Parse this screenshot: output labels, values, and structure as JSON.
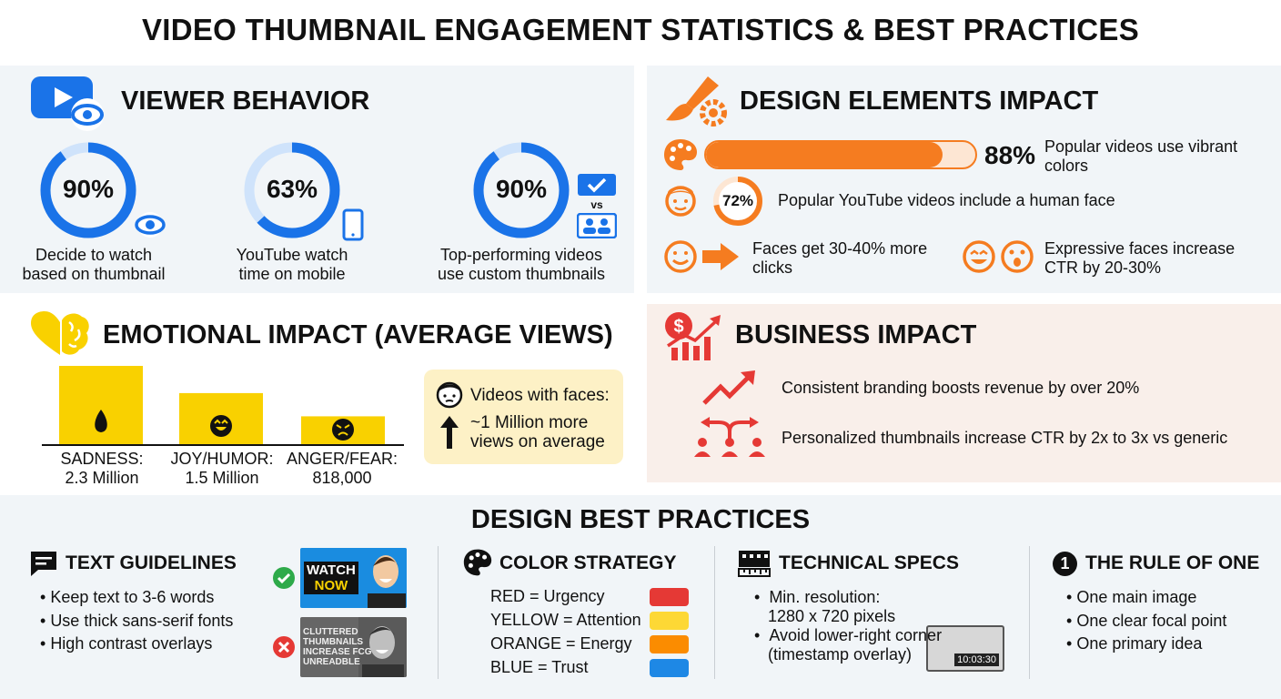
{
  "title": "VIDEO THUMBNAIL ENGAGEMENT STATISTICS & BEST PRACTICES",
  "viewer": {
    "heading": "VIEWER BEHAVIOR",
    "stats": [
      {
        "value": "90%",
        "pct": 90,
        "caption1": "Decide to watch",
        "caption2": "based on thumbnail"
      },
      {
        "value": "63%",
        "pct": 63,
        "caption1": "YouTube watch",
        "caption2": "time on mobile"
      },
      {
        "value": "90%",
        "pct": 90,
        "caption1": "Top-performing videos",
        "caption2": "use custom thumbnails",
        "vs": "vs"
      }
    ]
  },
  "design": {
    "heading": "DESIGN ELEMENTS IMPACT",
    "bar": {
      "value": "88%",
      "pct": 88,
      "text1": "Popular videos use vibrant",
      "text2": "colors"
    },
    "face": {
      "value": "72%",
      "pct": 72,
      "text": "Popular YouTube videos include a human face"
    },
    "clicks": {
      "text1": "Faces get 30-40% more",
      "text2": "clicks"
    },
    "ctr": {
      "text1": "Expressive faces increase",
      "text2": "CTR by 20-30%"
    }
  },
  "emotional": {
    "heading": "EMOTIONAL IMPACT (AVERAGE VIEWS)",
    "chart_data": {
      "type": "bar",
      "categories": [
        "SADNESS:",
        "JOY/HUMOR:",
        "ANGER/FEAR:"
      ],
      "values": [
        2300000,
        1500000,
        818000
      ],
      "labels": [
        "2.3 Million",
        "1.5 Million",
        "818,000"
      ]
    },
    "callout": {
      "line1": "Videos with faces:",
      "line2": "~1 Million more",
      "line3": "views on average"
    }
  },
  "business": {
    "heading": "BUSINESS IMPACT",
    "item1": "Consistent branding boosts revenue by over 20%",
    "item2": "Personalized thumbnails increase CTR by 2x to 3x vs generic"
  },
  "best": {
    "heading": "DESIGN BEST PRACTICES",
    "text": {
      "heading": "TEXT GUIDELINES",
      "items": [
        "Keep text to 3-6 words",
        "Use thick sans-serif fonts",
        "High contrast overlays"
      ],
      "good_thumb_1": "WATCH",
      "good_thumb_2": "NOW",
      "bad_thumb_1": "CLUTTERED",
      "bad_thumb_2": "THUMBNAILS",
      "bad_thumb_3": "INCREASE FCG",
      "bad_thumb_4": "UNREADBLE"
    },
    "color": {
      "heading": "COLOR STRATEGY",
      "items": [
        {
          "label": "RED = Urgency",
          "color": "#e53935"
        },
        {
          "label": "YELLOW = Attention",
          "color": "#fdd835"
        },
        {
          "label": "ORANGE = Energy",
          "color": "#fb8c00"
        },
        {
          "label": "BLUE = Trust",
          "color": "#1e88e5"
        }
      ]
    },
    "tech": {
      "heading": "TECHNICAL SPECS",
      "item1a": "Min. resolution:",
      "item1b": "1280 x 720 pixels",
      "item2a": "Avoid lower-right corner",
      "item2b": "(timestamp overlay)",
      "timestamp": "10:03:30"
    },
    "rule": {
      "heading": "THE RULE OF ONE",
      "num": "1",
      "items": [
        "One main image",
        "One clear focal point",
        "One primary idea"
      ]
    }
  },
  "colors": {
    "blue": "#1a73e8",
    "lightblue": "#cfe3fb",
    "orange": "#f57c20",
    "red": "#e53935",
    "yellow": "#f9d100"
  }
}
